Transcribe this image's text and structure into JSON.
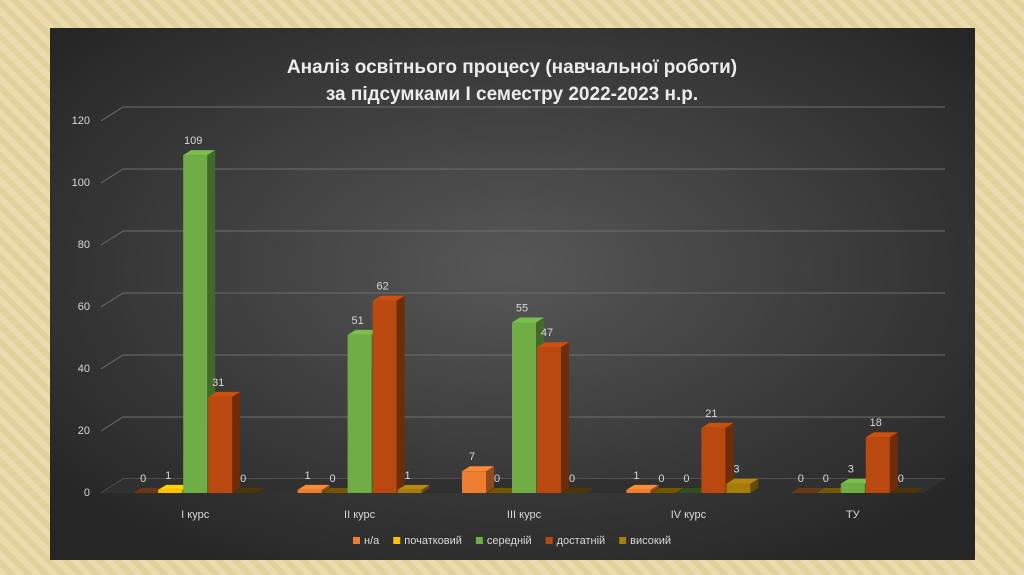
{
  "chart_data": {
    "type": "bar3d",
    "title": "Аналіз освітнього процесу (навчальної роботи)",
    "subtitle": "за підсумками І семестру 2022-2023 н.р.",
    "categories": [
      "І курс",
      "ІІ курс",
      "ІІІ курс",
      "ІV курс",
      "ТУ"
    ],
    "series": [
      {
        "name": "н/а",
        "color": "#ed7d31",
        "values": [
          0,
          1,
          7,
          1,
          0
        ]
      },
      {
        "name": "початковий",
        "color": "#ffc000",
        "values": [
          1,
          0,
          0,
          0,
          0
        ]
      },
      {
        "name": "середній",
        "color": "#70ad47",
        "values": [
          109,
          51,
          55,
          0,
          3
        ]
      },
      {
        "name": "достатній",
        "color": "#b9490f",
        "values": [
          31,
          62,
          47,
          21,
          18
        ]
      },
      {
        "name": "високий",
        "color": "#a67c0e",
        "values": [
          0,
          1,
          0,
          3,
          0
        ]
      }
    ],
    "ylim": [
      0,
      120
    ],
    "yticks": [
      0,
      20,
      40,
      60,
      80,
      100,
      120
    ],
    "grid": true,
    "legend": "bottom"
  }
}
